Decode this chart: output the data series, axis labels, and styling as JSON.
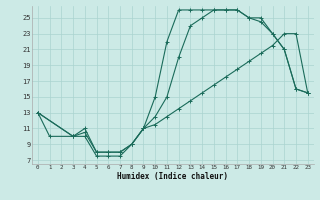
{
  "xlabel": "Humidex (Indice chaleur)",
  "background_color": "#cceae6",
  "grid_color": "#aad4d0",
  "line_color": "#1a6b5a",
  "xlim": [
    -0.5,
    23.5
  ],
  "ylim": [
    6.5,
    26.5
  ],
  "xticks": [
    0,
    1,
    2,
    3,
    4,
    5,
    6,
    7,
    8,
    9,
    10,
    11,
    12,
    13,
    14,
    15,
    16,
    17,
    18,
    19,
    20,
    21,
    22,
    23
  ],
  "yticks": [
    7,
    9,
    11,
    13,
    15,
    17,
    19,
    21,
    23,
    25
  ],
  "curve1_x": [
    0,
    1,
    3,
    4,
    5,
    6,
    7,
    8,
    9,
    10,
    11,
    12,
    13,
    14,
    15,
    16,
    17,
    18,
    19,
    20,
    21,
    22,
    23
  ],
  "curve1_y": [
    13,
    10,
    10,
    10,
    7.5,
    7.5,
    7.5,
    9,
    11,
    15,
    22,
    26,
    26,
    26,
    26,
    26,
    26,
    25,
    25,
    23,
    21,
    16,
    15.5
  ],
  "curve2_x": [
    0,
    3,
    4,
    5,
    6,
    7,
    8,
    9,
    10,
    11,
    12,
    13,
    14,
    15,
    16,
    17,
    18,
    19,
    20,
    21,
    22,
    23
  ],
  "curve2_y": [
    13,
    10,
    11,
    8,
    8,
    8,
    9,
    11,
    12.5,
    15,
    20,
    24,
    25,
    26,
    26,
    26,
    25,
    24.5,
    23,
    21,
    16,
    15.5
  ],
  "curve3_x": [
    0,
    3,
    4,
    5,
    6,
    7,
    8,
    9,
    10,
    11,
    12,
    13,
    14,
    15,
    16,
    17,
    18,
    19,
    20,
    21,
    22,
    23
  ],
  "curve3_y": [
    13,
    10,
    10.5,
    8,
    8,
    8,
    9,
    11,
    11.5,
    12.5,
    13.5,
    14.5,
    15.5,
    16.5,
    17.5,
    18.5,
    19.5,
    20.5,
    21.5,
    23,
    23,
    15.5
  ]
}
